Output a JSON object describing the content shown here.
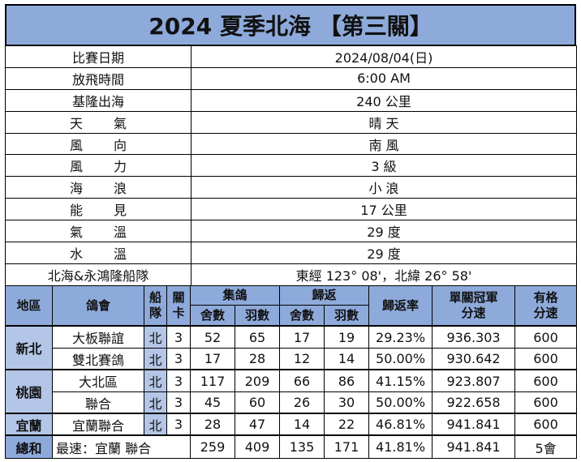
{
  "title": "2024 夏季北海 【第三關】",
  "info": [
    {
      "label": "比賽日期",
      "value": "2024/08/04(日)",
      "spread": false
    },
    {
      "label": "放飛時間",
      "value": "6:00 AM",
      "spread": false
    },
    {
      "label": "基隆出海",
      "value": "240 公里",
      "spread": false
    },
    {
      "label": "天氣",
      "value": "晴 天",
      "spread": true
    },
    {
      "label": "風向",
      "value": "南 風",
      "spread": true
    },
    {
      "label": "風力",
      "value": "3 級",
      "spread": true
    },
    {
      "label": "海浪",
      "value": "小 浪",
      "spread": true
    },
    {
      "label": "能見",
      "value": "17 公里",
      "spread": true
    },
    {
      "label": "氣溫",
      "value": "29 度",
      "spread": true
    },
    {
      "label": "水溫",
      "value": "29 度",
      "spread": true
    },
    {
      "label": "北海&永鴻隆船隊",
      "value": "東經 123° 08'，北緯 26° 58'",
      "spread": false
    }
  ],
  "results": {
    "headers": {
      "region": "地區",
      "club": "鴿會",
      "boat_1": "船",
      "boat_2": "隊",
      "stage_1": "關",
      "stage_2": "卡",
      "collected": "集鴿",
      "collected_lofts": "舍數",
      "collected_birds": "羽數",
      "returned": "歸返",
      "returned_lofts": "舍數",
      "returned_birds": "羽數",
      "return_rate": "歸返率",
      "champ_speed_1": "單關冠軍",
      "champ_speed_2": "分速",
      "qual_speed_1": "有格",
      "qual_speed_2": "分速"
    },
    "regions": [
      {
        "name": "新北",
        "rows": [
          {
            "club": "大板聯誼",
            "team": "北",
            "stage": "3",
            "c_lofts": "52",
            "c_birds": "65",
            "r_lofts": "17",
            "r_birds": "19",
            "rate": "29.23%",
            "champ": "936.303",
            "qual": "600"
          },
          {
            "club": "雙北賽鴿",
            "team": "北",
            "stage": "3",
            "c_lofts": "17",
            "c_birds": "28",
            "r_lofts": "12",
            "r_birds": "14",
            "rate": "50.00%",
            "champ": "930.642",
            "qual": "600"
          }
        ]
      },
      {
        "name": "桃園",
        "rows": [
          {
            "club": "大北區",
            "team": "北",
            "stage": "3",
            "c_lofts": "117",
            "c_birds": "209",
            "r_lofts": "66",
            "r_birds": "86",
            "rate": "41.15%",
            "champ": "923.807",
            "qual": "600"
          },
          {
            "club": "聯合",
            "team": "北",
            "stage": "3",
            "c_lofts": "45",
            "c_birds": "60",
            "r_lofts": "26",
            "r_birds": "30",
            "rate": "50.00%",
            "champ": "922.658",
            "qual": "600"
          }
        ]
      },
      {
        "name": "宜蘭",
        "rows": [
          {
            "club": "宜蘭聯合",
            "team": "北",
            "stage": "3",
            "c_lofts": "28",
            "c_birds": "47",
            "r_lofts": "14",
            "r_birds": "22",
            "rate": "46.81%",
            "champ": "941.841",
            "qual": "600"
          }
        ]
      }
    ],
    "total": {
      "label": "總和",
      "fastest": "最速：宜蘭 聯合",
      "c_lofts": "259",
      "c_birds": "409",
      "r_lofts": "135",
      "r_birds": "171",
      "rate": "41.81%",
      "champ": "941.841",
      "qual": "5會"
    }
  }
}
